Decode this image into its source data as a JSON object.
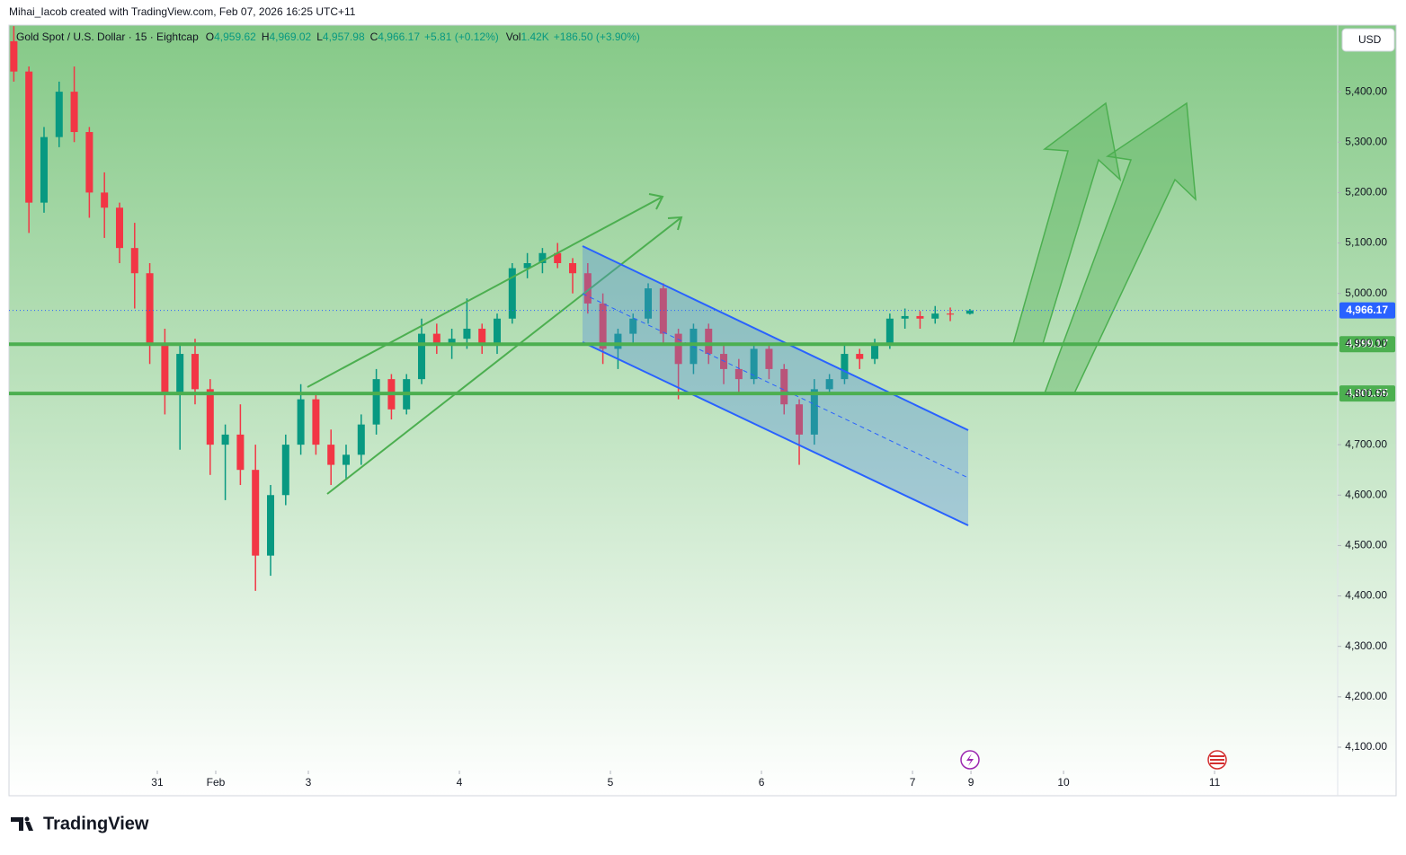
{
  "credit": "Mihai_Iacob created with TradingView.com, Feb 07, 2026 16:25 UTC+11",
  "brand": "TradingView",
  "currency_button": "USD",
  "chart_data": {
    "type": "candlestick",
    "title": "Gold Spot / U.S. Dollar · 15 · Eightcap",
    "ohlc_legend": [
      {
        "key": "O",
        "label": "4,959.62"
      },
      {
        "key": "H",
        "label": "4,969.02"
      },
      {
        "key": "L",
        "label": "4,957.98"
      },
      {
        "key": "C",
        "label": "4,966.17"
      }
    ],
    "change_label": "+5.81 (+0.12%)",
    "volume_key": "Vol",
    "volume_label": "1.42K",
    "volume_change_label": "+186.50 (+3.90%)",
    "x": [
      1.05,
      1.15,
      1.25,
      1.35,
      1.45,
      1.55,
      1.65,
      1.75,
      1.85,
      1.95,
      2.05,
      2.15,
      2.25,
      2.35,
      2.45,
      2.55,
      2.65,
      2.75,
      2.85,
      2.95,
      3.05,
      3.15,
      3.25,
      3.35,
      3.45,
      3.55,
      3.65,
      3.75,
      3.85,
      3.95,
      4.05,
      4.15,
      4.25,
      4.35,
      4.45,
      4.55,
      4.65,
      4.75,
      4.85,
      4.95,
      5.05,
      5.15,
      5.25,
      5.35,
      5.45,
      5.55,
      5.65,
      5.75,
      5.85,
      5.95,
      6.05,
      6.15,
      6.25,
      6.35,
      6.45,
      6.55,
      6.65,
      6.75,
      6.85,
      6.95,
      7.05,
      7.15,
      7.25,
      7.38
    ],
    "open": [
      5500,
      5440,
      5180,
      5310,
      5400,
      5320,
      5200,
      5170,
      5090,
      5040,
      4900,
      4800,
      4880,
      4810,
      4700,
      4720,
      4650,
      4480,
      4600,
      4700,
      4790,
      4700,
      4660,
      4680,
      4740,
      4830,
      4770,
      4830,
      4920,
      4900,
      4910,
      4930,
      4900,
      4950,
      5050,
      5060,
      5080,
      5060,
      5040,
      4980,
      4890,
      4920,
      4950,
      5010,
      4920,
      4860,
      4930,
      4880,
      4850,
      4830,
      4890,
      4850,
      4780,
      4720,
      4810,
      4830,
      4880,
      4870,
      4900,
      4950,
      4955,
      4950,
      4960,
      4959.62
    ],
    "high": [
      5530,
      5450,
      5330,
      5420,
      5450,
      5330,
      5240,
      5180,
      5140,
      5060,
      4930,
      4900,
      4910,
      4830,
      4740,
      4780,
      4700,
      4620,
      4720,
      4820,
      4800,
      4730,
      4700,
      4760,
      4850,
      4840,
      4840,
      4950,
      4940,
      4930,
      4990,
      4940,
      4960,
      5060,
      5080,
      5090,
      5100,
      5070,
      5060,
      5000,
      4930,
      4960,
      5020,
      5020,
      4930,
      4940,
      4940,
      4900,
      4870,
      4900,
      4900,
      4860,
      4790,
      4830,
      4840,
      4900,
      4890,
      4910,
      4960,
      4970,
      4965,
      4975,
      4972,
      4969.02
    ],
    "low": [
      5420,
      5120,
      5160,
      5290,
      5300,
      5150,
      5110,
      5060,
      4970,
      4860,
      4760,
      4690,
      4780,
      4640,
      4590,
      4620,
      4410,
      4440,
      4580,
      4680,
      4680,
      4620,
      4630,
      4660,
      4720,
      4750,
      4760,
      4820,
      4880,
      4870,
      4890,
      4880,
      4880,
      4940,
      5030,
      5040,
      5050,
      5000,
      4960,
      4860,
      4850,
      4900,
      4940,
      4900,
      4790,
      4840,
      4860,
      4820,
      4800,
      4820,
      4830,
      4760,
      4660,
      4700,
      4800,
      4820,
      4850,
      4860,
      4890,
      4930,
      4930,
      4940,
      4945,
      4957.98
    ],
    "close": [
      5440,
      5180,
      5310,
      5400,
      5320,
      5200,
      5170,
      5090,
      5040,
      4900,
      4800,
      4880,
      4810,
      4700,
      4720,
      4650,
      4480,
      4600,
      4700,
      4790,
      4700,
      4660,
      4680,
      4740,
      4830,
      4770,
      4830,
      4920,
      4900,
      4910,
      4930,
      4900,
      4950,
      5050,
      5060,
      5080,
      5060,
      5040,
      4980,
      4890,
      4920,
      4950,
      5010,
      4920,
      4860,
      4930,
      4880,
      4850,
      4830,
      4890,
      4850,
      4780,
      4720,
      4810,
      4830,
      4880,
      4870,
      4900,
      4950,
      4955,
      4950,
      4960,
      4958,
      4966.17
    ],
    "up_color": "#089981",
    "down_color": "#f23645",
    "xlim": [
      1.018,
      9.815
    ],
    "xticks": [
      {
        "value": 2,
        "label": "31"
      },
      {
        "value": 2.387,
        "label": "Feb"
      },
      3,
      4,
      5,
      6,
      7,
      {
        "value": 7.387,
        "label": "9"
      },
      {
        "value": 8,
        "label": "10"
      },
      {
        "value": 9,
        "label": "11"
      }
    ],
    "ylim": [
      4059,
      5532
    ],
    "yticks": [
      {
        "value": 4100,
        "label": "4,100.00"
      },
      {
        "value": 4200,
        "label": "4,200.00"
      },
      {
        "value": 4300,
        "label": "4,300.00"
      },
      {
        "value": 4400,
        "label": "4,400.00"
      },
      {
        "value": 4500,
        "label": "4,500.00"
      },
      {
        "value": 4600,
        "label": "4,600.00"
      },
      {
        "value": 4700,
        "label": "4,700.00"
      },
      {
        "value": 4800,
        "label": "4,800.00"
      },
      {
        "value": 4900,
        "label": "4,900.00"
      },
      {
        "value": 5000,
        "label": "5,000.00"
      },
      {
        "value": 5100,
        "label": "5,100.00"
      },
      {
        "value": 5200,
        "label": "5,200.00"
      },
      {
        "value": 5300,
        "label": "5,300.00"
      },
      {
        "value": 5400,
        "label": "5,400.00"
      }
    ],
    "current_price": {
      "value": 4966.17,
      "label": "4,966.17",
      "color": "#2962ff"
    },
    "levels": [
      {
        "value": 4899.17,
        "label": "4,899.17"
      },
      {
        "value": 4801.55,
        "label": "4,801.55"
      }
    ],
    "level_color": "#4caf50"
  }
}
